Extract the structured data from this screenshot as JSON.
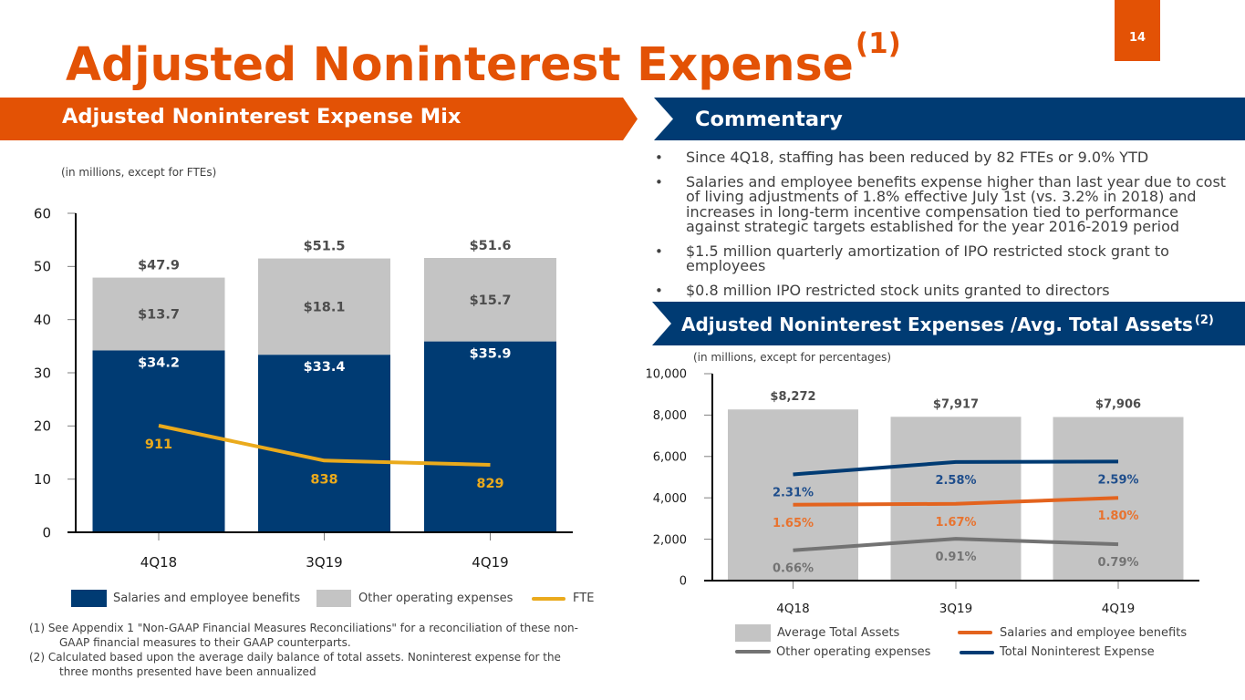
{
  "page_number": "14",
  "title": {
    "text": "Adjusted Noninterest Expense",
    "superscript": "(1)"
  },
  "commentary": {
    "heading": "Commentary",
    "bullet_symbol": "•",
    "bullets": [
      {
        "lines": [
          "Since 4Q18, staffing has been reduced by 82 FTEs or 9.0% YTD"
        ]
      },
      {
        "lines": [
          "Salaries and employee benefits expense higher than last year due to cost",
          "of living adjustments of 1.8% effective July 1st (vs. 3.2% in 2018) and",
          "increases in long-term incentive compensation tied to performance",
          "against strategic targets established for the year 2016-2019 period"
        ]
      },
      {
        "lines": [
          "$1.5 million quarterly amortization of IPO restricted stock grant to",
          "employees"
        ]
      },
      {
        "lines": [
          "$0.8 million IPO restricted stock units granted to directors"
        ]
      }
    ]
  },
  "footnotes": [
    {
      "lines": [
        "(1) See Appendix 1 \"Non-GAAP Financial Measures Reconciliations\" for a reconciliation of these non-",
        "GAAP financial measures to their GAAP counterparts."
      ]
    },
    {
      "lines": [
        "(2) Calculated based upon the average daily balance of total assets. Noninterest expense for the",
        "three months presented have been annualized"
      ]
    }
  ],
  "colors": {
    "brand_orange": "#E35205",
    "brand_navy": "#003B73",
    "fte_gold": "#EAAA1C",
    "bar_gray": "#C4C4C4",
    "label_dark": "#4D4D4D"
  },
  "chart_data": [
    {
      "type": "bar",
      "stacked": true,
      "title": "Adjusted Noninterest Expense Mix",
      "subtitle": "(in millions, except for FTEs)",
      "xlabel": "",
      "ylabel": "",
      "categories": [
        "4Q18",
        "3Q19",
        "4Q19"
      ],
      "ylim": [
        0,
        60
      ],
      "yticks": [
        0,
        10,
        20,
        30,
        40,
        50,
        60
      ],
      "ytick_labels": [
        "0",
        "10",
        "20",
        "30",
        "40",
        "50",
        "60"
      ],
      "y2lim": [
        688,
        1355
      ],
      "grid": false,
      "legend_position": "bottom",
      "series": [
        {
          "name": "Salaries and employee benefits",
          "type": "bar",
          "values": [
            34.2,
            33.4,
            35.9
          ],
          "labels": [
            "$34.2",
            "$33.4",
            "$35.9"
          ],
          "color": "#003B73",
          "label_color": "#FFFFFF"
        },
        {
          "name": "Other operating expenses",
          "type": "bar",
          "values": [
            13.7,
            18.1,
            15.7
          ],
          "labels": [
            "$13.7",
            "$18.1",
            "$15.7"
          ],
          "color": "#C4C4C4",
          "label_color": "#4D4D4D"
        },
        {
          "name": "FTE",
          "type": "line",
          "axis": "secondary",
          "values": [
            911,
            838,
            829
          ],
          "labels": [
            "911",
            "838",
            "829"
          ],
          "color": "#EAAA1C",
          "label_color": "#EAAA1C"
        }
      ],
      "totals": {
        "values": [
          47.9,
          51.5,
          51.6
        ],
        "labels": [
          "$47.9",
          "$51.5",
          "$51.6"
        ],
        "label_color": "#4D4D4D"
      }
    },
    {
      "type": "bar",
      "title": "Adjusted Noninterest Expenses /Avg. Total Assets",
      "title_superscript": "(2)",
      "subtitle": "(in millions, except for percentages)",
      "xlabel": "",
      "ylabel": "",
      "categories": [
        "4Q18",
        "3Q19",
        "4Q19"
      ],
      "ylim": [
        0,
        10000
      ],
      "yticks": [
        0,
        2000,
        4000,
        6000,
        8000,
        10000
      ],
      "ytick_labels": [
        "0",
        "2,000",
        "4,000",
        "6,000",
        "8,000",
        "10,000"
      ],
      "y2lim": [
        0,
        4.5
      ],
      "grid": false,
      "legend_position": "bottom",
      "series": [
        {
          "name": "Average Total Assets",
          "type": "bar",
          "values": [
            8272,
            7917,
            7906
          ],
          "labels": [
            "$8,272",
            "$7,917",
            "$7,906"
          ],
          "color": "#C4C4C4",
          "label_color": "#4D4D4D"
        },
        {
          "name": "Salaries and employee benefits",
          "type": "line",
          "axis": "secondary",
          "values": [
            1.65,
            1.67,
            1.8
          ],
          "labels": [
            "1.65%",
            "1.67%",
            "1.80%"
          ],
          "color": "#E3631E",
          "label_color": "#E8732F"
        },
        {
          "name": "Other operating expenses",
          "type": "line",
          "axis": "secondary",
          "values": [
            0.66,
            0.91,
            0.79
          ],
          "labels": [
            "0.66%",
            "0.91%",
            "0.79%"
          ],
          "color": "#737373",
          "label_color": "#737373"
        },
        {
          "name": "Total Noninterest Expense",
          "type": "line",
          "axis": "secondary",
          "values": [
            2.31,
            2.58,
            2.59
          ],
          "labels": [
            "2.31%",
            "2.58%",
            "2.59%"
          ],
          "color": "#003B73",
          "label_color": "#1F4E8C"
        }
      ]
    }
  ]
}
